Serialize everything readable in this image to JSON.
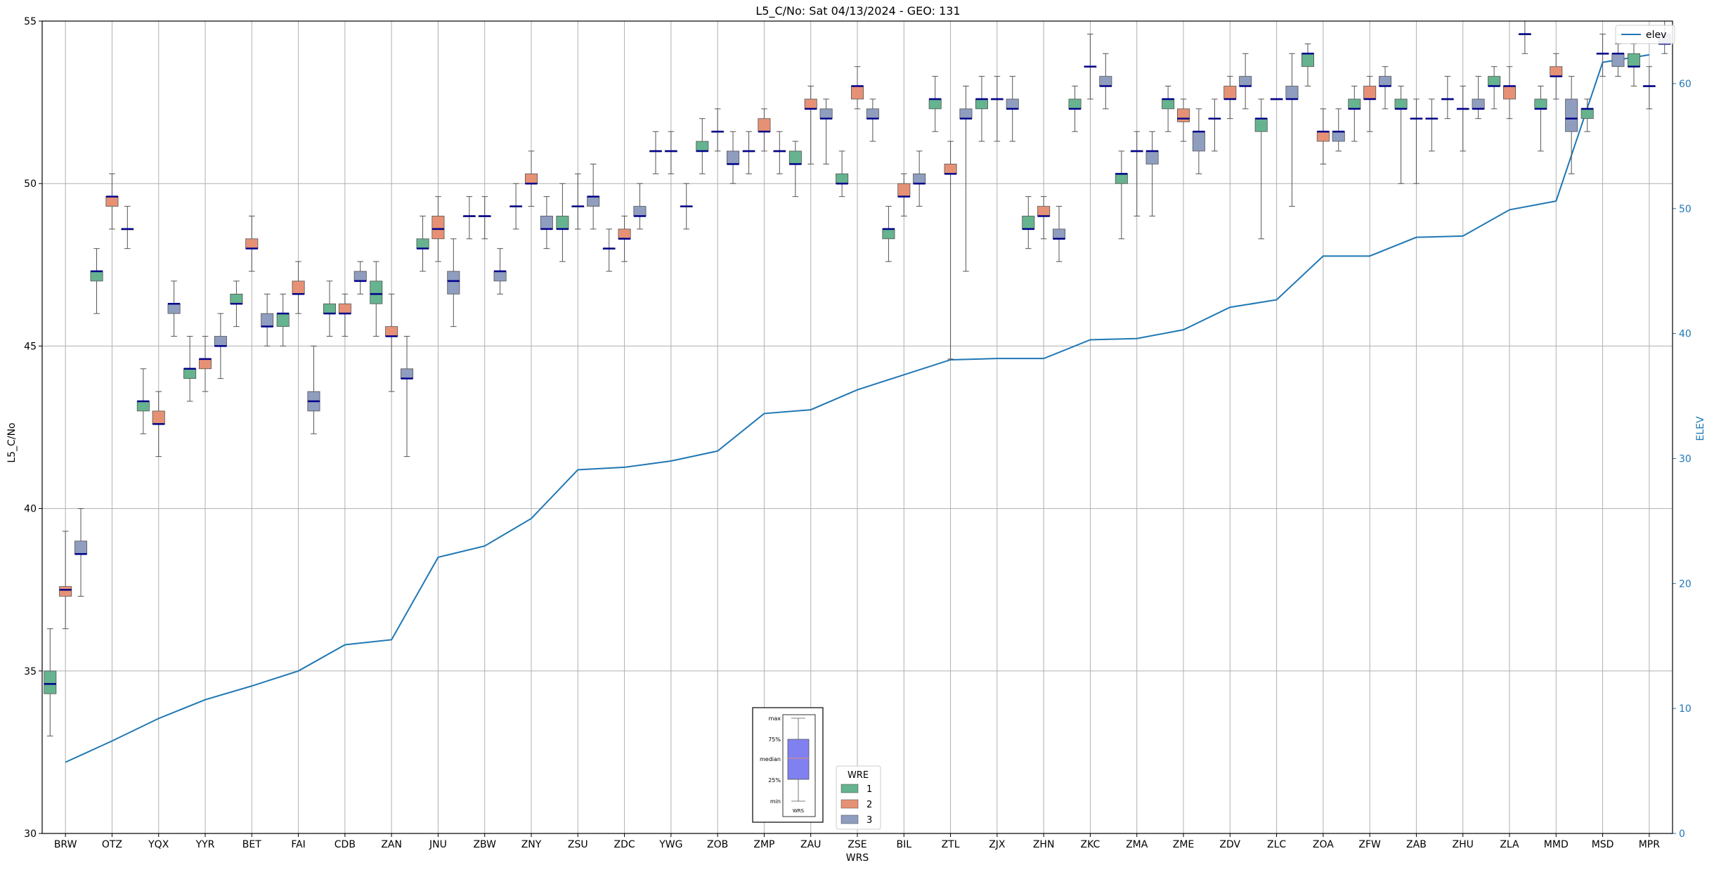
{
  "chart_data": {
    "type": "box",
    "title": "L5_C/No: Sat 04/13/2024 - GEO: 131",
    "xlabel": "WRS",
    "ylabel": "L5_C/No",
    "y2label": "ELEV",
    "ylim": [
      30,
      55
    ],
    "y2lim": [
      0,
      65
    ],
    "yticks": [
      30,
      35,
      40,
      45,
      50,
      55
    ],
    "y2ticks": [
      0,
      10,
      20,
      30,
      40,
      50,
      60
    ],
    "grid": true,
    "categories": [
      "BRW",
      "OTZ",
      "YQX",
      "YYR",
      "BET",
      "FAI",
      "CDB",
      "ZAN",
      "JNU",
      "ZBW",
      "ZNY",
      "ZSU",
      "ZDC",
      "YWG",
      "ZOB",
      "ZMP",
      "ZAU",
      "ZSE",
      "BIL",
      "ZTL",
      "ZJX",
      "ZHN",
      "ZKC",
      "ZMA",
      "ZME",
      "ZDV",
      "ZLC",
      "ZOA",
      "ZFW",
      "ZAB",
      "ZHU",
      "ZLA",
      "MMD",
      "MSD",
      "MPR"
    ],
    "wre_colors": {
      "1": "#66b38f",
      "2": "#e69175",
      "3": "#8f9dbf"
    },
    "median_color": "#00008b",
    "elev_color": "#1f77b4",
    "legend_elev": {
      "label": "elev",
      "placement": "top-right"
    },
    "legend_wre": {
      "title": "WRE",
      "items": [
        "1",
        "2",
        "3"
      ],
      "placement": "bottom-center"
    },
    "key_box": {
      "labels": [
        "max",
        "75%",
        "median",
        "25%",
        "min"
      ],
      "caption": "WRS"
    },
    "elev": [
      5.7,
      7.4,
      9.2,
      10.7,
      11.8,
      13.0,
      15.1,
      15.5,
      22.1,
      23.0,
      25.2,
      29.1,
      29.3,
      29.8,
      30.6,
      33.6,
      33.9,
      35.5,
      36.7,
      37.9,
      38.0,
      38.0,
      39.5,
      39.6,
      40.3,
      42.1,
      42.7,
      46.2,
      46.2,
      47.7,
      47.8,
      49.9,
      50.6,
      61.7,
      62.3
    ],
    "boxes": [
      [
        {
          "wre": 1,
          "min": 33.0,
          "q1": 34.3,
          "med": 34.6,
          "q3": 35.0,
          "max": 36.3
        },
        {
          "wre": 2,
          "min": 36.3,
          "q1": 37.3,
          "med": 37.5,
          "q3": 37.6,
          "max": 39.3
        },
        {
          "wre": 3,
          "min": 37.3,
          "q1": 38.6,
          "med": 38.6,
          "q3": 39.0,
          "max": 40.0
        }
      ],
      [
        {
          "wre": 1,
          "min": 46.0,
          "q1": 47.0,
          "med": 47.3,
          "q3": 47.3,
          "max": 48.0
        },
        {
          "wre": 2,
          "min": 48.6,
          "q1": 49.3,
          "med": 49.6,
          "q3": 49.6,
          "max": 50.3
        },
        {
          "wre": 3,
          "min": 48.0,
          "q1": 48.6,
          "med": 48.6,
          "q3": 48.6,
          "max": 49.3
        }
      ],
      [
        {
          "wre": 1,
          "min": 42.3,
          "q1": 43.0,
          "med": 43.3,
          "q3": 43.3,
          "max": 44.3
        },
        {
          "wre": 2,
          "min": 41.6,
          "q1": 42.6,
          "med": 42.6,
          "q3": 43.0,
          "max": 43.6
        },
        {
          "wre": 3,
          "min": 45.3,
          "q1": 46.0,
          "med": 46.3,
          "q3": 46.3,
          "max": 47.0
        }
      ],
      [
        {
          "wre": 1,
          "min": 43.3,
          "q1": 44.0,
          "med": 44.3,
          "q3": 44.3,
          "max": 45.3
        },
        {
          "wre": 2,
          "min": 43.6,
          "q1": 44.3,
          "med": 44.6,
          "q3": 44.6,
          "max": 45.3
        },
        {
          "wre": 3,
          "min": 44.0,
          "q1": 45.0,
          "med": 45.0,
          "q3": 45.3,
          "max": 46.0
        }
      ],
      [
        {
          "wre": 1,
          "min": 45.6,
          "q1": 46.3,
          "med": 46.3,
          "q3": 46.6,
          "max": 47.0
        },
        {
          "wre": 2,
          "min": 47.3,
          "q1": 48.0,
          "med": 48.0,
          "q3": 48.3,
          "max": 49.0
        },
        {
          "wre": 3,
          "min": 45.0,
          "q1": 45.6,
          "med": 45.6,
          "q3": 46.0,
          "max": 46.6
        }
      ],
      [
        {
          "wre": 1,
          "min": 45.0,
          "q1": 45.6,
          "med": 46.0,
          "q3": 46.0,
          "max": 46.6
        },
        {
          "wre": 2,
          "min": 46.0,
          "q1": 46.6,
          "med": 46.6,
          "q3": 47.0,
          "max": 47.6
        },
        {
          "wre": 3,
          "min": 42.3,
          "q1": 43.0,
          "med": 43.3,
          "q3": 43.6,
          "max": 45.0
        }
      ],
      [
        {
          "wre": 1,
          "min": 45.3,
          "q1": 46.0,
          "med": 46.0,
          "q3": 46.3,
          "max": 47.0
        },
        {
          "wre": 2,
          "min": 45.3,
          "q1": 46.0,
          "med": 46.0,
          "q3": 46.3,
          "max": 46.6
        },
        {
          "wre": 3,
          "min": 46.6,
          "q1": 47.0,
          "med": 47.0,
          "q3": 47.3,
          "max": 47.6
        }
      ],
      [
        {
          "wre": 1,
          "min": 45.3,
          "q1": 46.3,
          "med": 46.6,
          "q3": 47.0,
          "max": 47.6
        },
        {
          "wre": 2,
          "min": 43.6,
          "q1": 45.3,
          "med": 45.3,
          "q3": 45.6,
          "max": 46.6
        },
        {
          "wre": 3,
          "min": 41.6,
          "q1": 44.0,
          "med": 44.0,
          "q3": 44.3,
          "max": 45.3
        }
      ],
      [
        {
          "wre": 1,
          "min": 47.3,
          "q1": 48.0,
          "med": 48.0,
          "q3": 48.3,
          "max": 49.0
        },
        {
          "wre": 2,
          "min": 47.6,
          "q1": 48.3,
          "med": 48.6,
          "q3": 49.0,
          "max": 49.6
        },
        {
          "wre": 3,
          "min": 45.6,
          "q1": 46.6,
          "med": 47.0,
          "q3": 47.3,
          "max": 48.3
        }
      ],
      [
        {
          "wre": 1,
          "min": 48.3,
          "q1": 49.0,
          "med": 49.0,
          "q3": 49.0,
          "max": 49.6
        },
        {
          "wre": 2,
          "min": 48.3,
          "q1": 49.0,
          "med": 49.0,
          "q3": 49.0,
          "max": 49.6
        },
        {
          "wre": 3,
          "min": 46.6,
          "q1": 47.0,
          "med": 47.3,
          "q3": 47.3,
          "max": 48.0
        }
      ],
      [
        {
          "wre": 1,
          "min": 48.6,
          "q1": 49.3,
          "med": 49.3,
          "q3": 49.3,
          "max": 50.0
        },
        {
          "wre": 2,
          "min": 49.3,
          "q1": 50.0,
          "med": 50.0,
          "q3": 50.3,
          "max": 51.0
        },
        {
          "wre": 3,
          "min": 48.0,
          "q1": 48.6,
          "med": 48.6,
          "q3": 49.0,
          "max": 49.6
        }
      ],
      [
        {
          "wre": 1,
          "min": 47.6,
          "q1": 48.6,
          "med": 48.6,
          "q3": 49.0,
          "max": 50.0
        },
        {
          "wre": 2,
          "min": 48.6,
          "q1": 49.3,
          "med": 49.3,
          "q3": 49.3,
          "max": 50.3
        },
        {
          "wre": 3,
          "min": 48.6,
          "q1": 49.3,
          "med": 49.6,
          "q3": 49.6,
          "max": 50.6
        }
      ],
      [
        {
          "wre": 1,
          "min": 47.3,
          "q1": 48.0,
          "med": 48.0,
          "q3": 48.0,
          "max": 48.6
        },
        {
          "wre": 2,
          "min": 47.6,
          "q1": 48.3,
          "med": 48.3,
          "q3": 48.6,
          "max": 49.0
        },
        {
          "wre": 3,
          "min": 48.6,
          "q1": 49.0,
          "med": 49.0,
          "q3": 49.3,
          "max": 50.0
        }
      ],
      [
        {
          "wre": 1,
          "min": 50.3,
          "q1": 51.0,
          "med": 51.0,
          "q3": 51.0,
          "max": 51.6
        },
        {
          "wre": 2,
          "min": 50.3,
          "q1": 51.0,
          "med": 51.0,
          "q3": 51.0,
          "max": 51.6
        },
        {
          "wre": 3,
          "min": 48.6,
          "q1": 49.3,
          "med": 49.3,
          "q3": 49.3,
          "max": 50.0
        }
      ],
      [
        {
          "wre": 1,
          "min": 50.3,
          "q1": 51.0,
          "med": 51.0,
          "q3": 51.3,
          "max": 52.0
        },
        {
          "wre": 2,
          "min": 51.0,
          "q1": 51.6,
          "med": 51.6,
          "q3": 51.6,
          "max": 52.3
        },
        {
          "wre": 3,
          "min": 50.0,
          "q1": 50.6,
          "med": 50.6,
          "q3": 51.0,
          "max": 51.6
        }
      ],
      [
        {
          "wre": 1,
          "min": 50.3,
          "q1": 51.0,
          "med": 51.0,
          "q3": 51.0,
          "max": 51.6
        },
        {
          "wre": 2,
          "min": 51.0,
          "q1": 51.6,
          "med": 51.6,
          "q3": 52.0,
          "max": 52.3
        },
        {
          "wre": 3,
          "min": 50.3,
          "q1": 51.0,
          "med": 51.0,
          "q3": 51.0,
          "max": 51.6
        }
      ],
      [
        {
          "wre": 1,
          "min": 49.6,
          "q1": 50.6,
          "med": 50.6,
          "q3": 51.0,
          "max": 51.3
        },
        {
          "wre": 2,
          "min": 50.6,
          "q1": 52.3,
          "med": 52.3,
          "q3": 52.6,
          "max": 53.0
        },
        {
          "wre": 3,
          "min": 50.6,
          "q1": 52.0,
          "med": 52.0,
          "q3": 52.3,
          "max": 52.6
        }
      ],
      [
        {
          "wre": 1,
          "min": 49.6,
          "q1": 50.0,
          "med": 50.0,
          "q3": 50.3,
          "max": 51.0
        },
        {
          "wre": 2,
          "min": 52.3,
          "q1": 52.6,
          "med": 53.0,
          "q3": 53.0,
          "max": 53.6
        },
        {
          "wre": 3,
          "min": 51.3,
          "q1": 52.0,
          "med": 52.0,
          "q3": 52.3,
          "max": 52.6
        }
      ],
      [
        {
          "wre": 1,
          "min": 47.6,
          "q1": 48.3,
          "med": 48.6,
          "q3": 48.6,
          "max": 49.3
        },
        {
          "wre": 2,
          "min": 49.0,
          "q1": 49.6,
          "med": 49.6,
          "q3": 50.0,
          "max": 50.3
        },
        {
          "wre": 3,
          "min": 49.3,
          "q1": 50.0,
          "med": 50.0,
          "q3": 50.3,
          "max": 51.0
        }
      ],
      [
        {
          "wre": 1,
          "min": 51.6,
          "q1": 52.3,
          "med": 52.6,
          "q3": 52.6,
          "max": 53.3
        },
        {
          "wre": 2,
          "min": 44.6,
          "q1": 50.3,
          "med": 50.3,
          "q3": 50.6,
          "max": 51.3
        },
        {
          "wre": 3,
          "min": 47.3,
          "q1": 52.0,
          "med": 52.0,
          "q3": 52.3,
          "max": 53.0
        }
      ],
      [
        {
          "wre": 1,
          "min": 51.3,
          "q1": 52.3,
          "med": 52.6,
          "q3": 52.6,
          "max": 53.3
        },
        {
          "wre": 2,
          "min": 51.3,
          "q1": 52.6,
          "med": 52.6,
          "q3": 52.6,
          "max": 53.3
        },
        {
          "wre": 3,
          "min": 51.3,
          "q1": 52.3,
          "med": 52.3,
          "q3": 52.6,
          "max": 53.3
        }
      ],
      [
        {
          "wre": 1,
          "min": 48.0,
          "q1": 48.6,
          "med": 48.6,
          "q3": 49.0,
          "max": 49.6
        },
        {
          "wre": 2,
          "min": 48.3,
          "q1": 49.0,
          "med": 49.0,
          "q3": 49.3,
          "max": 49.6
        },
        {
          "wre": 3,
          "min": 47.6,
          "q1": 48.3,
          "med": 48.3,
          "q3": 48.6,
          "max": 49.3
        }
      ],
      [
        {
          "wre": 1,
          "min": 51.6,
          "q1": 52.3,
          "med": 52.3,
          "q3": 52.6,
          "max": 53.0
        },
        {
          "wre": 2,
          "min": 52.6,
          "q1": 53.6,
          "med": 53.6,
          "q3": 53.6,
          "max": 54.6
        },
        {
          "wre": 3,
          "min": 52.3,
          "q1": 53.0,
          "med": 53.0,
          "q3": 53.3,
          "max": 54.0
        }
      ],
      [
        {
          "wre": 1,
          "min": 48.3,
          "q1": 50.0,
          "med": 50.3,
          "q3": 50.3,
          "max": 51.0
        },
        {
          "wre": 2,
          "min": 49.0,
          "q1": 51.0,
          "med": 51.0,
          "q3": 51.0,
          "max": 51.6
        },
        {
          "wre": 3,
          "min": 49.0,
          "q1": 50.6,
          "med": 51.0,
          "q3": 51.0,
          "max": 51.6
        }
      ],
      [
        {
          "wre": 1,
          "min": 51.6,
          "q1": 52.3,
          "med": 52.6,
          "q3": 52.6,
          "max": 53.0
        },
        {
          "wre": 2,
          "min": 51.3,
          "q1": 51.9,
          "med": 52.0,
          "q3": 52.3,
          "max": 52.6
        },
        {
          "wre": 3,
          "min": 50.3,
          "q1": 51.0,
          "med": 51.6,
          "q3": 51.6,
          "max": 52.3
        }
      ],
      [
        {
          "wre": 1,
          "min": 51.0,
          "q1": 52.0,
          "med": 52.0,
          "q3": 52.0,
          "max": 52.6
        },
        {
          "wre": 2,
          "min": 52.0,
          "q1": 52.6,
          "med": 52.6,
          "q3": 53.0,
          "max": 53.3
        },
        {
          "wre": 3,
          "min": 52.3,
          "q1": 53.0,
          "med": 53.0,
          "q3": 53.3,
          "max": 54.0
        }
      ],
      [
        {
          "wre": 1,
          "min": 48.3,
          "q1": 51.6,
          "med": 52.0,
          "q3": 52.0,
          "max": 52.6
        },
        {
          "wre": 2,
          "min": 52.6,
          "q1": 52.6,
          "med": 52.6,
          "q3": 52.6,
          "max": 52.6
        },
        {
          "wre": 3,
          "min": 49.3,
          "q1": 52.6,
          "med": 52.6,
          "q3": 53.0,
          "max": 54.0
        }
      ],
      [
        {
          "wre": 1,
          "min": 53.0,
          "q1": 53.6,
          "med": 54.0,
          "q3": 54.0,
          "max": 54.3
        },
        {
          "wre": 2,
          "min": 50.6,
          "q1": 51.3,
          "med": 51.6,
          "q3": 51.6,
          "max": 52.3
        },
        {
          "wre": 3,
          "min": 51.0,
          "q1": 51.3,
          "med": 51.6,
          "q3": 51.6,
          "max": 52.3
        }
      ],
      [
        {
          "wre": 1,
          "min": 51.3,
          "q1": 52.3,
          "med": 52.3,
          "q3": 52.6,
          "max": 53.0
        },
        {
          "wre": 2,
          "min": 51.6,
          "q1": 52.6,
          "med": 52.6,
          "q3": 53.0,
          "max": 53.3
        },
        {
          "wre": 3,
          "min": 52.3,
          "q1": 53.0,
          "med": 53.0,
          "q3": 53.3,
          "max": 53.6
        }
      ],
      [
        {
          "wre": 1,
          "min": 50.0,
          "q1": 52.3,
          "med": 52.3,
          "q3": 52.6,
          "max": 53.0
        },
        {
          "wre": 2,
          "min": 50.0,
          "q1": 52.0,
          "med": 52.0,
          "q3": 52.0,
          "max": 52.6
        },
        {
          "wre": 3,
          "min": 51.0,
          "q1": 52.0,
          "med": 52.0,
          "q3": 52.0,
          "max": 52.6
        }
      ],
      [
        {
          "wre": 1,
          "min": 52.0,
          "q1": 52.6,
          "med": 52.6,
          "q3": 52.6,
          "max": 53.3
        },
        {
          "wre": 2,
          "min": 51.0,
          "q1": 52.3,
          "med": 52.3,
          "q3": 52.3,
          "max": 53.0
        },
        {
          "wre": 3,
          "min": 52.0,
          "q1": 52.3,
          "med": 52.3,
          "q3": 52.6,
          "max": 53.3
        }
      ],
      [
        {
          "wre": 1,
          "min": 52.3,
          "q1": 53.0,
          "med": 53.0,
          "q3": 53.3,
          "max": 53.6
        },
        {
          "wre": 2,
          "min": 52.0,
          "q1": 52.6,
          "med": 53.0,
          "q3": 53.0,
          "max": 53.6
        },
        {
          "wre": 3,
          "min": 54.0,
          "q1": 54.6,
          "med": 54.6,
          "q3": 54.6,
          "max": 55.0
        }
      ],
      [
        {
          "wre": 1,
          "min": 51.0,
          "q1": 52.3,
          "med": 52.3,
          "q3": 52.6,
          "max": 53.0
        },
        {
          "wre": 2,
          "min": 52.6,
          "q1": 53.3,
          "med": 53.3,
          "q3": 53.6,
          "max": 54.0
        },
        {
          "wre": 3,
          "min": 50.3,
          "q1": 51.6,
          "med": 52.0,
          "q3": 52.6,
          "max": 53.3
        }
      ],
      [
        {
          "wre": 1,
          "min": 51.6,
          "q1": 52.0,
          "med": 52.3,
          "q3": 52.3,
          "max": 52.6
        },
        {
          "wre": 2,
          "min": 53.3,
          "q1": 54.0,
          "med": 54.0,
          "q3": 54.0,
          "max": 54.6
        },
        {
          "wre": 3,
          "min": 53.3,
          "q1": 53.6,
          "med": 54.0,
          "q3": 54.0,
          "max": 54.3
        }
      ],
      [
        {
          "wre": 1,
          "min": 53.0,
          "q1": 53.6,
          "med": 53.6,
          "q3": 54.0,
          "max": 54.3
        },
        {
          "wre": 2,
          "min": 52.3,
          "q1": 53.0,
          "med": 53.0,
          "q3": 53.0,
          "max": 53.6
        },
        {
          "wre": 3,
          "min": 54.0,
          "q1": 54.3,
          "med": 54.3,
          "q3": 54.6,
          "max": 55.0
        }
      ]
    ]
  }
}
